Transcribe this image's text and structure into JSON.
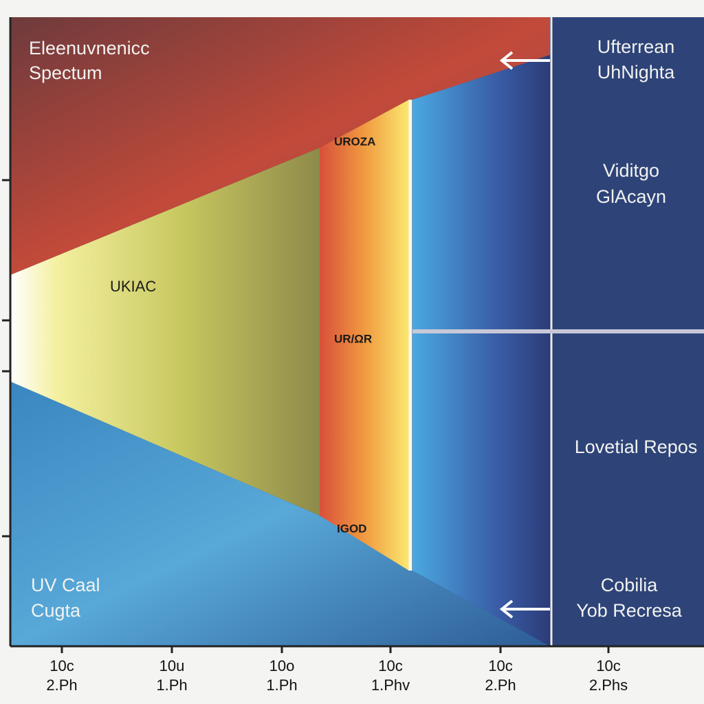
{
  "title": [
    "Eleenuvnenicc",
    "Spectum"
  ],
  "band_labels": [
    "UKIAC",
    "UROZA",
    "UR/ΩR",
    "IGOD"
  ],
  "corner_label": [
    "UV Caal",
    "Cugta"
  ],
  "panel_labels": [
    [
      "Ufterrean",
      "UhNighta"
    ],
    [
      "Viditgo",
      "GlAcayn"
    ],
    [
      "Lovetial Repos"
    ],
    [
      "Cobilia",
      "Yob Recresa"
    ]
  ],
  "x_axis_labels": [
    [
      "10c",
      "2.Ph"
    ],
    [
      "10u",
      "1.Ph"
    ],
    [
      "10o",
      "1.Ph"
    ],
    [
      "10c",
      "1.Phv"
    ],
    [
      "10c",
      "2.Ph"
    ],
    [
      "10c",
      "2.Phs"
    ]
  ]
}
